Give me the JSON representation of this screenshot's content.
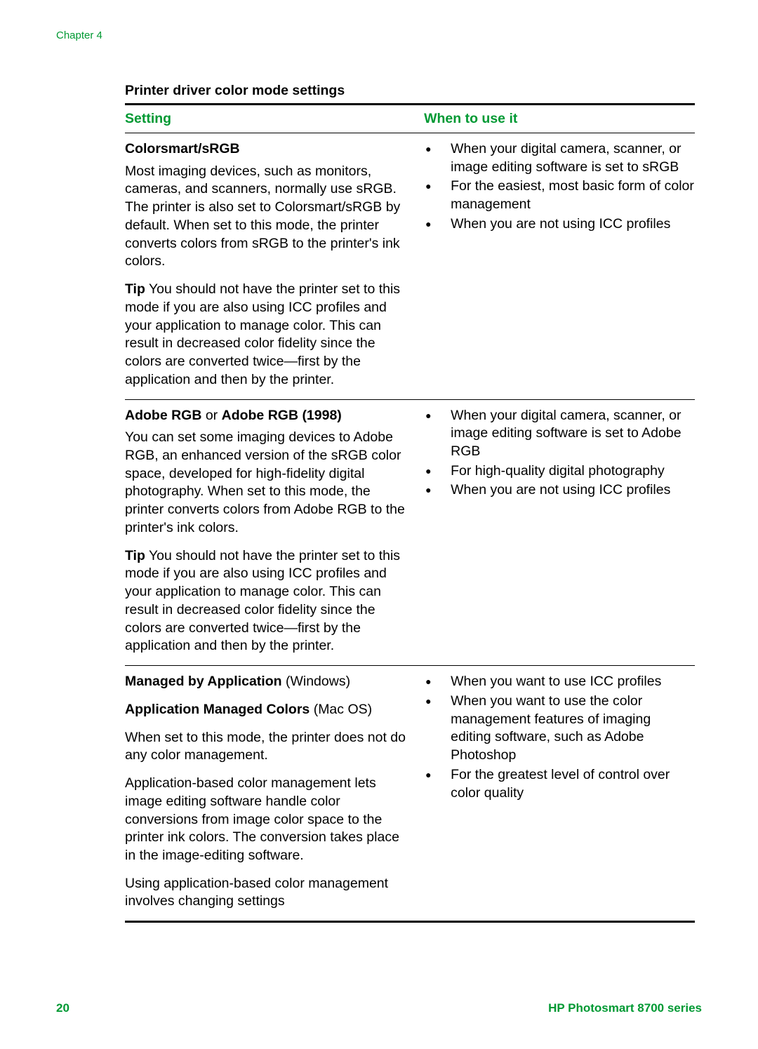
{
  "chapter_label": "Chapter 4",
  "page_number": "20",
  "product_line": "HP Photosmart 8700 series",
  "table_title": "Printer driver color mode settings",
  "columns": {
    "setting": "Setting",
    "when": "When to use it"
  },
  "colors": {
    "accent": "#009933",
    "text": "#000000",
    "background": "#ffffff",
    "rule": "#000000"
  },
  "typography": {
    "body_fontsize_pt": 15,
    "header_fontsize_pt": 15,
    "table_title_fontsize_pt": 15,
    "footer_fontsize_pt": 13,
    "font_family": "Arial"
  },
  "rows": [
    {
      "name_bold": "Colorsmart/sRGB",
      "name_extra": "",
      "desc": "Most imaging devices, such as monitors, cameras, and scanners, normally use sRGB. The printer is also set to Colorsmart/sRGB by default. When set to this mode, the printer converts colors from sRGB to the printer's ink colors.",
      "tip_label": "Tip",
      "tip": " You should not have the printer set to this mode if you are also using ICC profiles and your application to manage color. This can result in decreased color fidelity since the colors are converted twice—first by the application and then by the printer.",
      "when": [
        "When your digital camera, scanner, or image editing software is set to sRGB",
        "For the easiest, most basic form of color management",
        "When you are not using ICC profiles"
      ]
    },
    {
      "name_bold": "Adobe RGB",
      "name_mid": " or ",
      "name_bold2": "Adobe RGB (1998)",
      "desc": "You can set some imaging devices to Adobe RGB, an enhanced version of the sRGB color space, developed for high-fidelity digital photography. When set to this mode, the printer converts colors from Adobe RGB to the printer's ink colors.",
      "tip_label": "Tip",
      "tip": " You should not have the printer set to this mode if you are also using ICC profiles and your application to manage color. This can result in decreased color fidelity since the colors are converted twice—first by the application and then by the printer.",
      "when": [
        "When your digital camera, scanner, or image editing software is set to Adobe RGB",
        "For high-quality digital photography",
        "When you are not using ICC profiles"
      ]
    },
    {
      "name_bold": "Managed by Application",
      "name_extra": " (Windows)",
      "line2_bold": "Application Managed Colors",
      "line2_extra": " (Mac OS)",
      "desc": "When set to this mode, the printer does not do any color management.",
      "desc2": "Application-based color management lets image editing software handle color conversions from image color space to the printer ink colors. The conversion takes place in the image-editing software.",
      "desc3": "Using application-based color management involves changing settings",
      "when": [
        "When you want to use ICC profiles",
        "When you want to use the color management features of imaging editing software, such as Adobe Photoshop",
        "For the greatest level of control over color quality"
      ]
    }
  ]
}
